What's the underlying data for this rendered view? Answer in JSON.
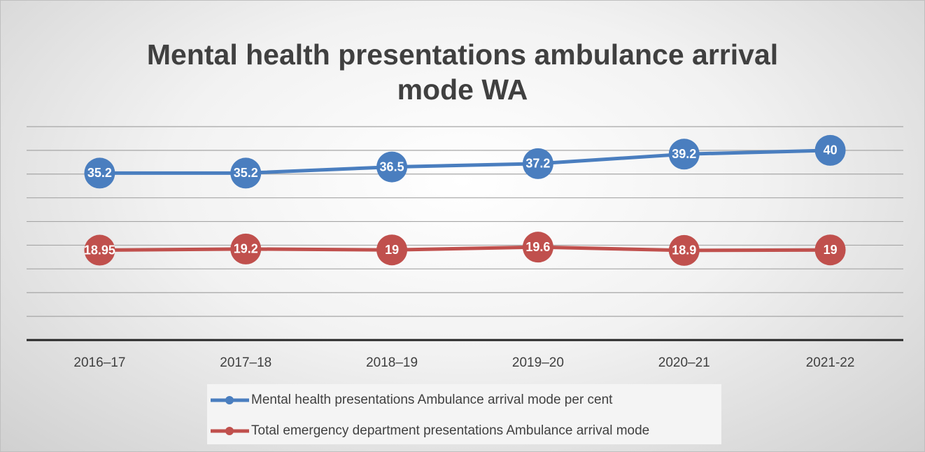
{
  "chart_data": {
    "type": "line",
    "title": "Mental health presentations ambulance arrival mode WA",
    "categories": [
      "2016–17",
      "2017–18",
      "2018–19",
      "2019–20",
      "2020–21",
      "2021-22"
    ],
    "series": [
      {
        "name": "Mental health presentations Ambulance arrival mode per cent",
        "color": "#4a7ebf",
        "values": [
          35.2,
          35.2,
          36.5,
          37.2,
          39.2,
          40
        ]
      },
      {
        "name": "Total emergency department presentations Ambulance arrival mode",
        "color": "#c0504d",
        "values": [
          18.95,
          19.2,
          19,
          19.6,
          18.9,
          19
        ]
      }
    ],
    "ylim": [
      0,
      45
    ],
    "yticks": [
      0,
      5,
      10,
      15,
      20,
      25,
      30,
      35,
      40,
      45
    ],
    "grid": true,
    "legend": "bottom"
  }
}
